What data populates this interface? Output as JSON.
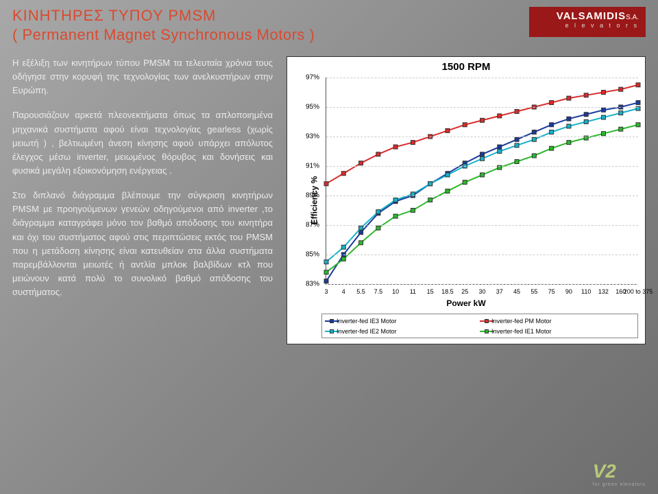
{
  "header": {
    "title1": "ΚΙΝΗΤΗΡΕΣ ΤΥΠΟΥ PMSM",
    "title2": "( Permanent Magnet Synchronous Motors )",
    "logo_brand": "VALSAMIDIS",
    "logo_sa": "S.A.",
    "logo_sub": "e l e v a t o r s"
  },
  "paragraphs": {
    "p1": "Η εξέλιξη των κινητήρων τύπου PMSM τα τελευταία χρόνια τους οδήγησε στην κορυφή της τεχνολογίας των ανελκυστήρων στην Ευρώπη.",
    "p2": "Παρουσιάζουν αρκετά πλεονεκτήματα όπως τα απλοποιημένα μηχανικά συστήματα αφού είναι τεχνολογίας gearless (χωρίς μειωτή ) , βελτιωμένη άνεση κίνησης αφού υπάρχει απόλυτος έλεγχος μέσω inverter, μειωμένος θόρυβος και δονήσεις και φυσικά μεγάλη εξοικονόμηση ενέργειας .",
    "p3": "Στο διπλανό διάγραμμα βλέπουμε την σύγκριση κινητήρων PMSM με προηγούμενων γενεών οδηγούμενοι από inverter ,το διάγραμμα καταγράφει μόνο τον βαθμό απόδοσης του κινητήρα και όχι του συστήματος αφού στις περιπτώσεις εκτός του PMSM που η μετάδοση κίνησης είναι κατευθείαν στα άλλα συστήματα παρεμβάλλονται μειωτές ή αντλία μπλοκ βαλβίδων κτλ που μειώνουν κατά πολύ το συνολικό βαθμό απόδοσης του συστήματος."
  },
  "chart": {
    "title": "1500 RPM",
    "xlabel": "Power kW",
    "ylabel": "Efficiency %",
    "background": "#ffffff",
    "grid_color": "#cccccc",
    "ylim": [
      83,
      97
    ],
    "yticks": [
      83,
      85,
      87,
      89,
      91,
      93,
      95,
      97
    ],
    "xcats": [
      "3",
      "4",
      "5.5",
      "7.5",
      "10",
      "11",
      "15",
      "18.5",
      "25",
      "30",
      "37",
      "45",
      "55",
      "75",
      "90",
      "110",
      "132",
      "160",
      "200 to 375"
    ],
    "series": [
      {
        "name": "Inverter-fed IE3 Motor",
        "color": "#1a3a9c",
        "marker": "square",
        "y": [
          83.2,
          85.0,
          86.5,
          87.8,
          88.6,
          89.0,
          89.8,
          90.5,
          91.2,
          91.8,
          92.3,
          92.8,
          93.3,
          93.8,
          94.2,
          94.5,
          94.8,
          95.0,
          95.3
        ]
      },
      {
        "name": "Inverter-fed PM Motor",
        "color": "#d92b2b",
        "marker": "square",
        "y": [
          89.8,
          90.5,
          91.2,
          91.8,
          92.3,
          92.6,
          93.0,
          93.4,
          93.8,
          94.1,
          94.4,
          94.7,
          95.0,
          95.3,
          95.6,
          95.8,
          96.0,
          96.2,
          96.5
        ]
      },
      {
        "name": "Inverter-fed IE2 Motor",
        "color": "#17b1c9",
        "marker": "square",
        "y": [
          84.5,
          85.5,
          86.8,
          87.9,
          88.7,
          89.1,
          89.8,
          90.4,
          91.0,
          91.5,
          92.0,
          92.4,
          92.8,
          93.3,
          93.7,
          94.0,
          94.3,
          94.6,
          94.9
        ]
      },
      {
        "name": "Inverter-fed IE1 Motor",
        "color": "#2bb82b",
        "marker": "square",
        "y": [
          83.8,
          84.7,
          85.8,
          86.8,
          87.6,
          88.0,
          88.7,
          89.3,
          89.9,
          90.4,
          90.9,
          91.3,
          91.7,
          92.2,
          92.6,
          92.9,
          93.2,
          93.5,
          93.8
        ]
      }
    ]
  },
  "footer": {
    "logo": "V2",
    "sub": "for green elevators"
  }
}
